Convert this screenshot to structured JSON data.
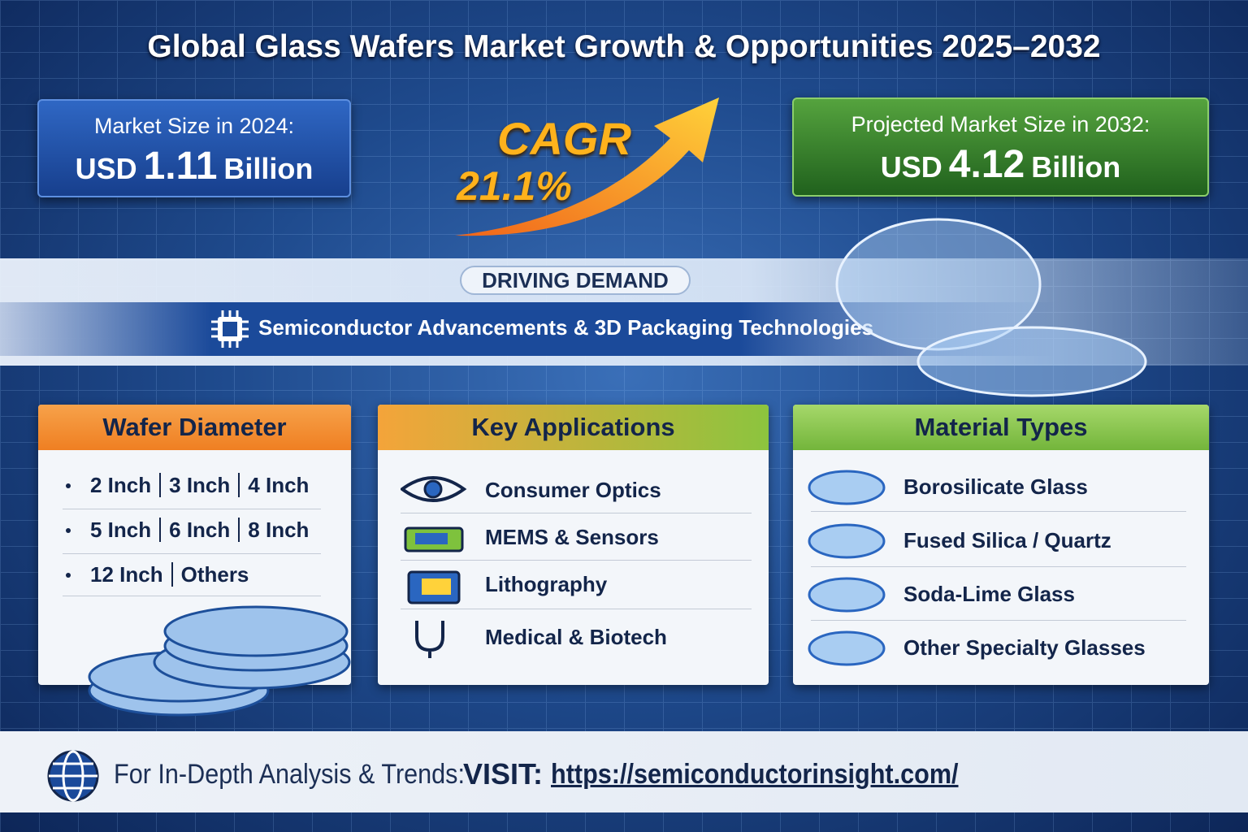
{
  "header": {
    "title": "Global Glass Wafers Market Growth & Opportunities 2025–2032"
  },
  "market_size": {
    "label": "Market Size in 2024:",
    "prefix": "USD",
    "amount": "1.11",
    "unit": "Billion"
  },
  "cagr": {
    "label": "CAGR",
    "value": "21.1%"
  },
  "projected": {
    "label": "Projected Market Size in 2032:",
    "prefix": "USD",
    "amount": "4.12",
    "unit": "Billion"
  },
  "driving_demand": {
    "heading": "DRIVING DEMAND",
    "text": "Semiconductor Advancements & 3D Packaging Technologies"
  },
  "panels": [
    {
      "title": "Wafer Diameter",
      "rows": [
        [
          "2 Inch",
          "3 Inch",
          "4 Inch"
        ],
        [
          "5 Inch",
          "6 Inch",
          "8 Inch"
        ],
        [
          "12 Inch",
          "Others"
        ]
      ]
    },
    {
      "title": "Key Applications",
      "items": [
        "Consumer Optics",
        "MEMS & Sensors",
        "Lithography",
        "Medical & Biotech"
      ]
    },
    {
      "title": "Material Types",
      "items": [
        "Borosilicate Glass",
        "Fused Silica / Quartz",
        "Soda-Lime Glass",
        "Other Specialty Glasses"
      ]
    }
  ],
  "footer": {
    "lead": "For In-Depth Analysis & Trends:",
    "visit": "VISIT:",
    "url": "https://semiconductorinsight.com/"
  }
}
